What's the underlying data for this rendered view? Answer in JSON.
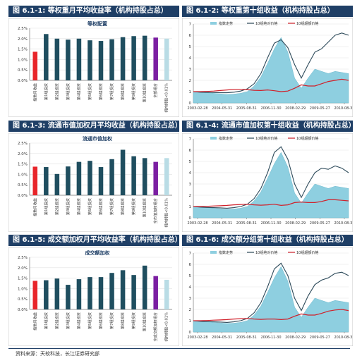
{
  "panels": [
    {
      "id": "p1",
      "title": "图 6.1-1: 等权重月平均收益率（机构持股占总）"
    },
    {
      "id": "p2",
      "title": "图 6.1-2: 等权重第十组收益（机构持股占总）"
    },
    {
      "id": "p3",
      "title": "图 6.1-3: 流通市值加权月平均收益（机构持股占总）"
    },
    {
      "id": "p4",
      "title": "图 6.1-4: 流通市值加权第十组收益（机构持股占总）"
    },
    {
      "id": "p5",
      "title": "图 6.1-5: 成交额加权月平均收益率（机构持股占总）"
    },
    {
      "id": "p6",
      "title": "图 6.1-6: 成交额分组第十组收益（机构持股占总）"
    }
  ],
  "footer": "资料来源：天软科技，长江证券研究部",
  "colors": {
    "header_bg": "#1f3f66",
    "bar_first": "#e8252a",
    "bar_mid": "#1f4e5f",
    "bar_purple": "#7b1fa2",
    "bar_light": "#b9dce5",
    "area": "#8ecfe0",
    "line_dark": "#2d4a5a",
    "line_red": "#d0202a"
  },
  "chart_data": [
    {
      "type": "bar",
      "title": "等权配置",
      "ylim": [
        0,
        2.5
      ],
      "yticks": [
        "0.0%",
        "0.5%",
        "1.0%",
        "1.5%",
        "2.0%",
        "2.5%"
      ],
      "categories": [
        "指数月收益",
        "第1组投资",
        "第2组投资",
        "第3组投资",
        "第4组投资",
        "第5组投资",
        "第6组投资",
        "第7组投资",
        "第8组投资",
        "第9组投资",
        "第10组投资",
        "全部组合",
        "机构持股<0.01%"
      ],
      "values": [
        1.37,
        2.22,
        2.0,
        1.95,
        2.0,
        1.92,
        1.89,
        1.97,
        2.07,
        2.12,
        2.14,
        2.05,
        2.0
      ]
    },
    {
      "type": "area",
      "title": "",
      "legend": [
        "指数走势",
        "10组绝对价格",
        "10组超额价格"
      ],
      "ylim": [
        0,
        7
      ],
      "yticks": [
        "0",
        "1",
        "2",
        "3",
        "4",
        "5",
        "6",
        "7"
      ],
      "xticks": [
        "2003-02-28",
        "2004-05-31",
        "2005-08-31",
        "2006-11-30",
        "2008-02-29",
        "2009-05-27",
        "2010-08-31"
      ],
      "series": [
        {
          "name": "指数走势",
          "values": [
            1.0,
            0.95,
            0.9,
            0.85,
            0.8,
            0.75,
            0.78,
            0.85,
            1.0,
            1.5,
            2.3,
            3.5,
            4.8,
            5.8,
            4.5,
            2.2,
            1.3,
            2.2,
            3.0,
            2.8,
            2.6,
            2.8,
            2.7,
            2.6
          ]
        },
        {
          "name": "10组绝对价格",
          "values": [
            1.0,
            0.95,
            0.93,
            0.92,
            0.9,
            0.9,
            0.95,
            1.05,
            1.25,
            1.7,
            2.6,
            4.0,
            5.3,
            5.6,
            4.9,
            3.4,
            2.2,
            3.4,
            4.5,
            4.8,
            5.4,
            6.0,
            6.2,
            6.0
          ]
        },
        {
          "name": "10组超额价格",
          "values": [
            1.0,
            1.0,
            1.02,
            1.05,
            1.1,
            1.15,
            1.2,
            1.2,
            1.18,
            1.12,
            1.1,
            1.15,
            1.08,
            1.0,
            1.05,
            1.3,
            1.6,
            1.5,
            1.5,
            1.7,
            1.9,
            2.0,
            2.1,
            2.0
          ]
        }
      ]
    },
    {
      "type": "bar",
      "title": "流通市值加权",
      "ylim": [
        0,
        2.5
      ],
      "yticks": [
        "0.0%",
        "0.5%",
        "1.0%",
        "1.5%",
        "2.0%",
        "2.5%"
      ],
      "categories": [
        "指数月收益",
        "第1组投资",
        "第2组投资",
        "第3组投资",
        "第4组投资",
        "第5组投资",
        "第6组投资",
        "第7组投资",
        "第8组投资",
        "第9组投资",
        "第10组投资",
        "全市值加权组合",
        "机构持股<0.01%"
      ],
      "values": [
        1.37,
        1.35,
        1.02,
        1.38,
        1.6,
        1.65,
        1.35,
        1.73,
        2.18,
        1.87,
        1.78,
        1.6,
        1.78
      ]
    },
    {
      "type": "area",
      "title": "",
      "legend": [
        "指数走势",
        "10组绝对价格",
        "10组超额价格"
      ],
      "ylim": [
        0,
        7
      ],
      "yticks": [
        "0",
        "1",
        "2",
        "3",
        "4",
        "5",
        "6",
        "7"
      ],
      "xticks": [
        "2003-02-28",
        "2004-05-31",
        "2005-08-31",
        "2006-11-30",
        "2008-02-29",
        "2009-05-27",
        "2010-08-31"
      ],
      "series": [
        {
          "name": "指数走势",
          "values": [
            1.0,
            0.95,
            0.9,
            0.85,
            0.8,
            0.75,
            0.78,
            0.85,
            1.0,
            1.5,
            2.3,
            3.5,
            4.8,
            5.8,
            4.5,
            2.2,
            1.3,
            2.2,
            3.0,
            2.8,
            2.6,
            2.8,
            2.7,
            2.6
          ]
        },
        {
          "name": "10组绝对价格",
          "values": [
            1.0,
            0.95,
            0.92,
            0.9,
            0.88,
            0.85,
            0.9,
            1.0,
            1.2,
            1.7,
            2.6,
            4.0,
            5.8,
            6.3,
            5.2,
            3.0,
            1.8,
            3.0,
            4.0,
            4.4,
            4.3,
            4.6,
            4.4,
            4.0
          ]
        },
        {
          "name": "10组超额价格",
          "values": [
            1.0,
            1.0,
            1.02,
            1.05,
            1.07,
            1.1,
            1.15,
            1.18,
            1.2,
            1.15,
            1.12,
            1.15,
            1.2,
            1.1,
            1.15,
            1.35,
            1.4,
            1.35,
            1.35,
            1.45,
            1.6,
            1.6,
            1.55,
            1.5
          ]
        }
      ]
    },
    {
      "type": "bar",
      "title": "成交额加权",
      "ylim": [
        0,
        2.5
      ],
      "yticks": [
        "0.0%",
        "0.5%",
        "1.0%",
        "1.5%",
        "2.0%",
        "2.5%"
      ],
      "categories": [
        "指数月收益",
        "第1组投资",
        "第2组投资",
        "第3组投资",
        "第4组投资",
        "第5组投资",
        "第6组投资",
        "第7组投资",
        "第8组投资",
        "第9组投资",
        "第10组投资",
        "全成交额加权组合",
        "机构持股<0.01%"
      ],
      "values": [
        1.37,
        1.4,
        1.48,
        1.18,
        1.45,
        1.55,
        1.55,
        1.75,
        1.88,
        1.65,
        2.1,
        1.6,
        1.42
      ]
    },
    {
      "type": "area",
      "title": "",
      "legend": [
        "指数走势",
        "10组绝对价格",
        "10组超额价格"
      ],
      "ylim": [
        0,
        7
      ],
      "yticks": [
        "0",
        "1",
        "2",
        "3",
        "4",
        "5",
        "6",
        "7"
      ],
      "xticks": [
        "2003-02-28",
        "2004-05-31",
        "2005-08-31",
        "2006-11-30",
        "2008-02-29",
        "2009-05-27",
        "2010-08-31"
      ],
      "series": [
        {
          "name": "指数走势",
          "values": [
            1.0,
            0.95,
            0.9,
            0.85,
            0.8,
            0.75,
            0.78,
            0.85,
            1.0,
            1.5,
            2.3,
            3.5,
            4.8,
            5.8,
            4.5,
            2.2,
            1.3,
            2.2,
            3.0,
            2.8,
            2.6,
            2.8,
            2.7,
            2.6
          ]
        },
        {
          "name": "10组绝对价格",
          "values": [
            1.0,
            0.95,
            0.92,
            0.9,
            0.88,
            0.85,
            0.9,
            1.0,
            1.2,
            1.7,
            2.6,
            4.0,
            5.6,
            6.1,
            5.0,
            3.0,
            1.9,
            3.2,
            4.2,
            4.6,
            4.8,
            5.2,
            5.3,
            5.0
          ]
        },
        {
          "name": "10组超额价格",
          "values": [
            1.0,
            1.0,
            1.02,
            1.05,
            1.07,
            1.1,
            1.15,
            1.18,
            1.2,
            1.15,
            1.12,
            1.15,
            1.15,
            1.1,
            1.15,
            1.4,
            1.6,
            1.5,
            1.5,
            1.65,
            1.85,
            1.95,
            2.0,
            1.9
          ]
        }
      ]
    }
  ]
}
